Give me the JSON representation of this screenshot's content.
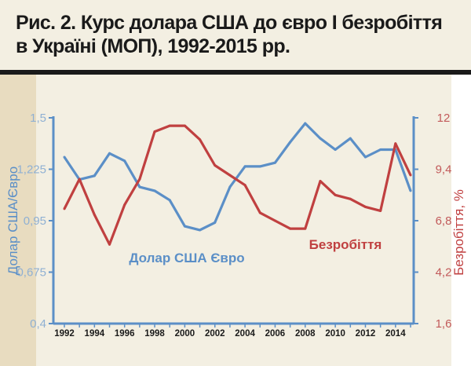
{
  "title_line1": "Рис. 2. Курс долара США до євро І безробіття",
  "title_line2": "в Україні (МОП), 1992-2015 рр.",
  "chart_data": {
    "type": "line",
    "title": "Рис. 2. Курс долара США до євро І безробіття в Україні (МОП), 1992-2015 рр.",
    "x": [
      1992,
      1993,
      1994,
      1995,
      1996,
      1997,
      1998,
      1999,
      2000,
      2001,
      2002,
      2003,
      2004,
      2005,
      2006,
      2007,
      2008,
      2009,
      2010,
      2011,
      2012,
      2013,
      2014,
      2015
    ],
    "x_tick_labels": [
      "1992",
      "1994",
      "1996",
      "1998",
      "2000",
      "2002",
      "2004",
      "2006",
      "2008",
      "2010",
      "2012",
      "2014"
    ],
    "left_axis": {
      "label": "Долар  США/Євро",
      "range": [
        0.4,
        1.5
      ],
      "ticks": [
        "1,5",
        "1,225",
        "0,95",
        "0,675",
        "0,4"
      ],
      "tick_values": [
        1.5,
        1.225,
        0.95,
        0.675,
        0.4
      ],
      "color": "#5b8fc7"
    },
    "right_axis": {
      "label": "Безробіття, %",
      "range": [
        1.6,
        12
      ],
      "ticks": [
        "12",
        "9,4",
        "6,8",
        "4,2",
        "1,6"
      ],
      "tick_values": [
        12,
        9.4,
        6.8,
        4.2,
        1.6
      ],
      "color": "#c04040"
    },
    "series": [
      {
        "name": "Долар США  Євро",
        "axis": "left",
        "color": "#5b8fc7",
        "values": [
          1.29,
          1.17,
          1.19,
          1.31,
          1.27,
          1.13,
          1.11,
          1.06,
          0.92,
          0.9,
          0.94,
          1.13,
          1.24,
          1.24,
          1.26,
          1.37,
          1.47,
          1.39,
          1.33,
          1.39,
          1.29,
          1.33,
          1.33,
          1.11
        ]
      },
      {
        "name": "Безробіття",
        "axis": "right",
        "color": "#c04040",
        "values": [
          7.4,
          8.9,
          7.1,
          5.6,
          7.6,
          8.9,
          11.3,
          11.6,
          11.6,
          10.9,
          9.6,
          9.1,
          8.6,
          7.2,
          6.8,
          6.4,
          6.4,
          8.8,
          8.1,
          7.9,
          7.5,
          7.3,
          10.7,
          9.1
        ]
      }
    ],
    "annotations": [
      "Долар США  Євро",
      "Безробіття"
    ],
    "grid": false
  }
}
